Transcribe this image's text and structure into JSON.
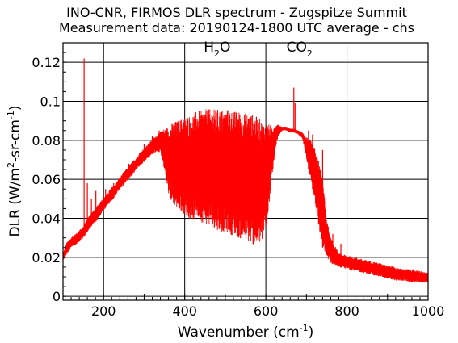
{
  "chart_data": {
    "type": "line",
    "title": "INO-CNR, FIRMOS DLR spectrum - Zugspitze Summit",
    "subtitle": "Measurement data: 20190124-1800 UTC average - chs",
    "xlabel": {
      "base": "Wavenumber (cm",
      "sup": "-1",
      "tail": ")"
    },
    "ylabel": {
      "p1": "DLR (W/m",
      "sup1": "2",
      "p2": "-sr-cm",
      "sup2": "-1",
      "p3": ")"
    },
    "xlim": [
      100,
      1000
    ],
    "ylim": [
      -0.002,
      0.13
    ],
    "grid": true,
    "x_ticks": [
      {
        "value": 200,
        "label": "200"
      },
      {
        "value": 400,
        "label": "400"
      },
      {
        "value": 600,
        "label": "600"
      },
      {
        "value": 800,
        "label": "800"
      },
      {
        "value": 1000,
        "label": "1000"
      }
    ],
    "y_ticks": [
      {
        "value": 0,
        "label": "0"
      },
      {
        "value": 0.02,
        "label": "0.02"
      },
      {
        "value": 0.04,
        "label": "0.04"
      },
      {
        "value": 0.06,
        "label": "0.06"
      },
      {
        "value": 0.08,
        "label": "0.08"
      },
      {
        "value": 0.1,
        "label": "0.1"
      },
      {
        "value": 0.12,
        "label": "0.12"
      }
    ],
    "annotations": [
      {
        "text": "H",
        "sub": "2",
        "tail": "O",
        "x": 480,
        "y": 0.1255
      },
      {
        "text": "CO",
        "sub": "2",
        "tail": "",
        "x": 683,
        "y": 0.1255
      }
    ],
    "series": [
      {
        "color": "#ff0000",
        "envelope": [
          [
            100,
            0.018,
            0.022
          ],
          [
            110,
            0.022,
            0.028
          ],
          [
            120,
            0.025,
            0.03
          ],
          [
            130,
            0.026,
            0.032
          ],
          [
            140,
            0.028,
            0.034
          ],
          [
            150,
            0.03,
            0.036
          ],
          [
            160,
            0.033,
            0.04
          ],
          [
            170,
            0.036,
            0.043
          ],
          [
            180,
            0.038,
            0.045
          ],
          [
            190,
            0.041,
            0.048
          ],
          [
            200,
            0.044,
            0.051
          ],
          [
            210,
            0.047,
            0.053
          ],
          [
            220,
            0.049,
            0.056
          ],
          [
            230,
            0.052,
            0.058
          ],
          [
            240,
            0.055,
            0.061
          ],
          [
            250,
            0.057,
            0.064
          ],
          [
            260,
            0.06,
            0.066
          ],
          [
            270,
            0.062,
            0.069
          ],
          [
            280,
            0.065,
            0.071
          ],
          [
            290,
            0.067,
            0.074
          ],
          [
            300,
            0.069,
            0.076
          ],
          [
            310,
            0.071,
            0.078
          ],
          [
            320,
            0.073,
            0.081
          ],
          [
            330,
            0.074,
            0.082
          ],
          [
            340,
            0.074,
            0.085
          ],
          [
            350,
            0.064,
            0.086
          ],
          [
            360,
            0.052,
            0.087
          ],
          [
            370,
            0.047,
            0.089
          ],
          [
            380,
            0.045,
            0.09
          ],
          [
            390,
            0.044,
            0.091
          ],
          [
            400,
            0.042,
            0.092
          ],
          [
            410,
            0.04,
            0.093
          ],
          [
            420,
            0.039,
            0.094
          ],
          [
            430,
            0.04,
            0.095
          ],
          [
            440,
            0.038,
            0.095
          ],
          [
            450,
            0.037,
            0.096
          ],
          [
            460,
            0.036,
            0.096
          ],
          [
            470,
            0.035,
            0.096
          ],
          [
            480,
            0.034,
            0.096
          ],
          [
            490,
            0.033,
            0.096
          ],
          [
            500,
            0.033,
            0.096
          ],
          [
            510,
            0.032,
            0.096
          ],
          [
            520,
            0.031,
            0.095
          ],
          [
            530,
            0.03,
            0.095
          ],
          [
            540,
            0.029,
            0.095
          ],
          [
            550,
            0.028,
            0.094
          ],
          [
            560,
            0.027,
            0.094
          ],
          [
            570,
            0.026,
            0.093
          ],
          [
            580,
            0.026,
            0.092
          ],
          [
            590,
            0.027,
            0.09
          ],
          [
            600,
            0.035,
            0.089
          ],
          [
            610,
            0.05,
            0.088
          ],
          [
            620,
            0.07,
            0.088
          ],
          [
            630,
            0.082,
            0.088
          ],
          [
            640,
            0.085,
            0.087
          ],
          [
            650,
            0.085,
            0.087
          ],
          [
            660,
            0.084,
            0.086
          ],
          [
            670,
            0.084,
            0.086
          ],
          [
            680,
            0.083,
            0.085
          ],
          [
            690,
            0.081,
            0.084
          ],
          [
            700,
            0.07,
            0.082
          ],
          [
            710,
            0.06,
            0.08
          ],
          [
            720,
            0.05,
            0.076
          ],
          [
            730,
            0.035,
            0.07
          ],
          [
            740,
            0.025,
            0.06
          ],
          [
            750,
            0.02,
            0.04
          ],
          [
            760,
            0.017,
            0.03
          ],
          [
            780,
            0.015,
            0.022
          ],
          [
            800,
            0.014,
            0.021
          ],
          [
            820,
            0.013,
            0.02
          ],
          [
            840,
            0.012,
            0.019
          ],
          [
            860,
            0.011,
            0.018
          ],
          [
            880,
            0.01,
            0.017
          ],
          [
            900,
            0.009,
            0.016
          ],
          [
            920,
            0.008,
            0.015
          ],
          [
            940,
            0.008,
            0.014
          ],
          [
            960,
            0.007,
            0.014
          ],
          [
            980,
            0.007,
            0.013
          ],
          [
            1000,
            0.007,
            0.012
          ]
        ],
        "spikes": [
          [
            152,
            0.122
          ],
          [
            160,
            0.058
          ],
          [
            170,
            0.05
          ],
          [
            181,
            0.054
          ],
          [
            205,
            0.055
          ],
          [
            225,
            0.058
          ],
          [
            262,
            0.068
          ],
          [
            300,
            0.078
          ],
          [
            320,
            0.082
          ],
          [
            337,
            0.085
          ],
          [
            355,
            0.086
          ],
          [
            669,
            0.107
          ],
          [
            672,
            0.099
          ],
          [
            705,
            0.085
          ],
          [
            715,
            0.083
          ],
          [
            740,
            0.075
          ],
          [
            765,
            0.032
          ],
          [
            785,
            0.027
          ]
        ]
      }
    ]
  }
}
